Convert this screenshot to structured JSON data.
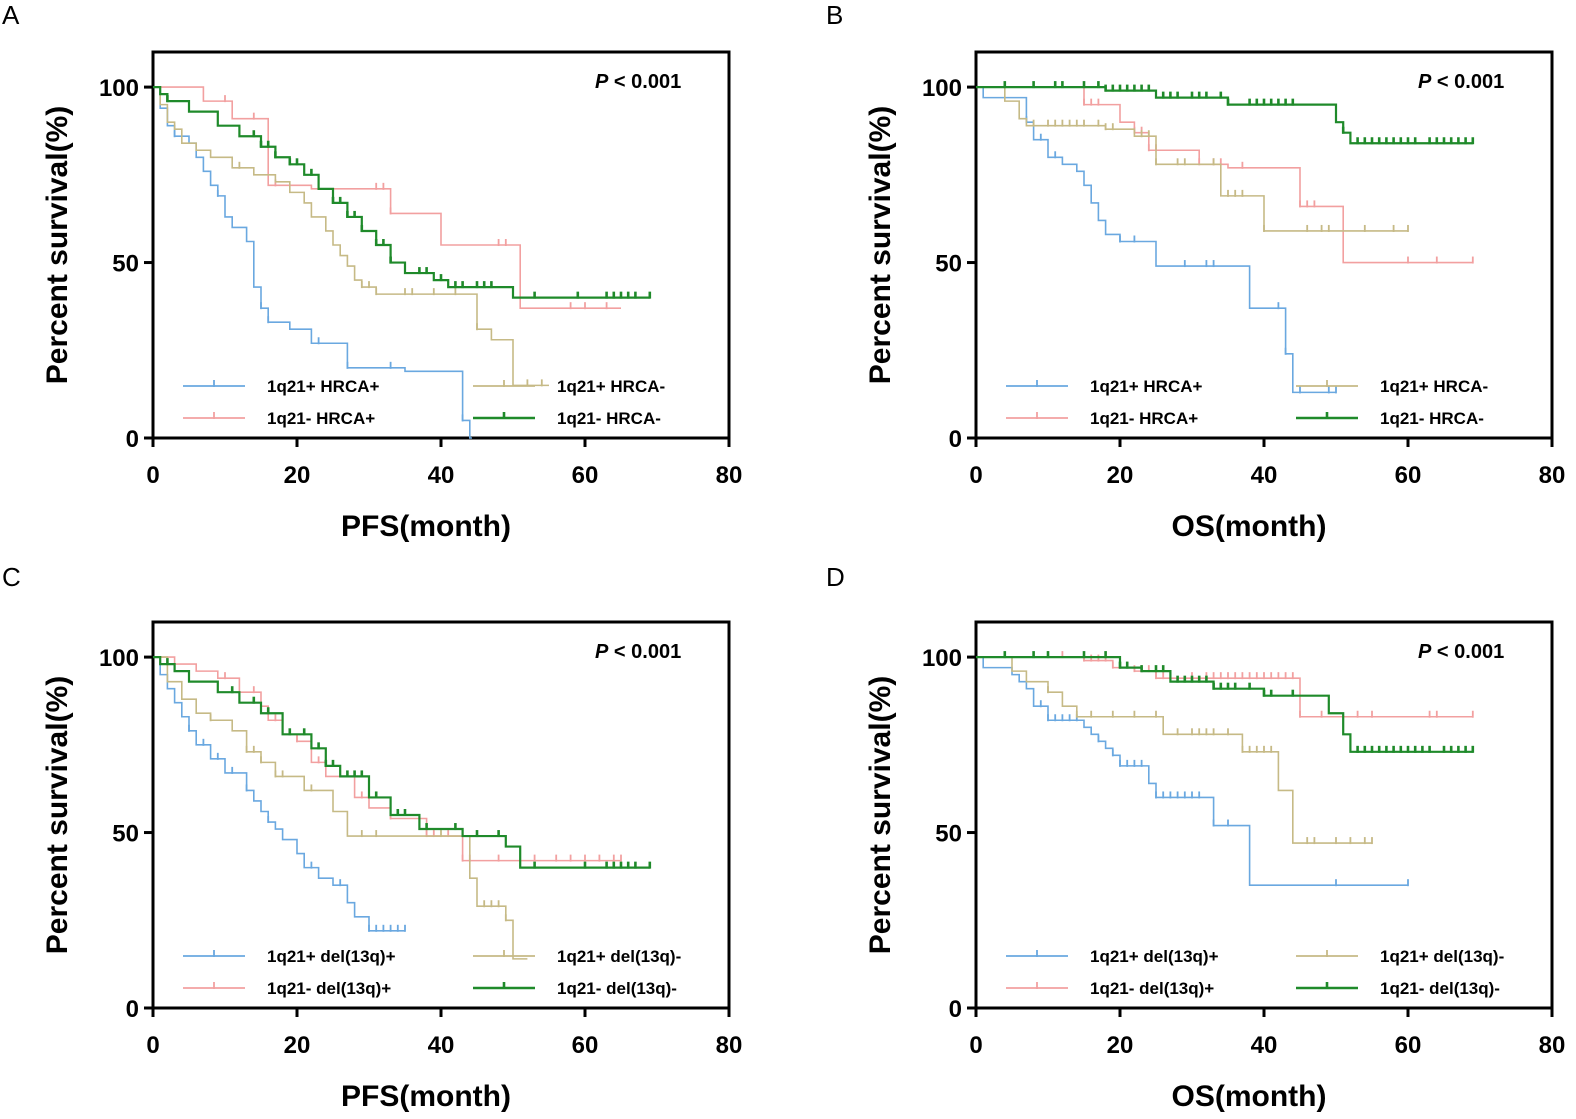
{
  "colors": {
    "blue": "#6aa8e0",
    "pink": "#f2a0a0",
    "tan": "#c6ba86",
    "green": "#1f8a2a"
  },
  "chart_data": [
    {
      "type": "line",
      "panel_label": "A",
      "title": "",
      "p_prefix": "P",
      "p_rest": " < 0.001",
      "xlabel": "PFS(month)",
      "ylabel": "Percent survival(%)",
      "xlim": [
        0,
        80
      ],
      "ylim": [
        0,
        110
      ],
      "xticks": [
        "0",
        "20",
        "40",
        "60",
        "80"
      ],
      "yticks": [
        "0",
        "50",
        "100"
      ],
      "series": [
        {
          "name": "1q21+ HRCA+",
          "color_key": "blue",
          "x": [
            0,
            1,
            2,
            3,
            5,
            6,
            7,
            8,
            9,
            10,
            11,
            13,
            14,
            15,
            16,
            19,
            22,
            27,
            35,
            43,
            44,
            44.3
          ],
          "y": [
            100,
            94,
            89,
            86,
            84,
            80,
            76,
            72,
            69,
            63,
            60,
            56,
            43,
            37,
            33,
            31,
            27,
            20,
            19,
            5,
            0,
            0
          ],
          "censor_x": [
            3,
            9,
            15,
            16,
            23,
            27,
            33,
            43
          ]
        },
        {
          "name": "1q21- HRCA+",
          "color_key": "pink",
          "x": [
            0,
            7,
            11,
            16,
            22,
            33,
            40,
            51,
            65
          ],
          "y": [
            100,
            96,
            91,
            72,
            71,
            64,
            55,
            37,
            37
          ],
          "censor_x": [
            10,
            14,
            17,
            31,
            32,
            33,
            48,
            49,
            58,
            60,
            63
          ]
        },
        {
          "name": "1q21+ HRCA-",
          "color_key": "tan",
          "x": [
            0,
            1,
            2,
            3,
            4,
            6,
            8,
            11,
            14,
            17,
            19,
            21,
            22,
            24,
            25,
            26,
            27,
            28,
            29,
            31,
            45,
            47,
            50,
            55
          ],
          "y": [
            100,
            95,
            90,
            88,
            84,
            82,
            80,
            77,
            75,
            73,
            70,
            67,
            63,
            59,
            55,
            52,
            49,
            45,
            43,
            41,
            31,
            28,
            15,
            15
          ],
          "censor_x": [
            12,
            29,
            30,
            31,
            35,
            36,
            39,
            42,
            45,
            52,
            54
          ]
        },
        {
          "name": "1q21- HRCA-",
          "color_key": "green",
          "x": [
            0,
            1,
            2,
            5,
            9,
            12,
            15,
            17,
            19,
            21,
            23,
            25,
            27,
            29,
            31,
            33,
            35,
            39,
            41,
            50,
            69
          ],
          "y": [
            100,
            98,
            96,
            93,
            89,
            86,
            83,
            80,
            78,
            75,
            71,
            67,
            63,
            59,
            55,
            50,
            47,
            45,
            43,
            40,
            40
          ],
          "censor_x": [
            2,
            14,
            15,
            16,
            17,
            19,
            20,
            22,
            25,
            26,
            27,
            28,
            29,
            31,
            32,
            33,
            37,
            38,
            40,
            42,
            43,
            45,
            46,
            47,
            53,
            59,
            63,
            64,
            65,
            66,
            67,
            69
          ]
        }
      ]
    },
    {
      "type": "line",
      "panel_label": "B",
      "title": "",
      "p_prefix": "P",
      "p_rest": " < 0.001",
      "xlabel": "OS(month)",
      "ylabel": "Percent survival(%)",
      "xlim": [
        0,
        80
      ],
      "ylim": [
        0,
        110
      ],
      "xticks": [
        "0",
        "20",
        "40",
        "60",
        "80"
      ],
      "yticks": [
        "0",
        "50",
        "100"
      ],
      "series": [
        {
          "name": "1q21+ HRCA+",
          "color_key": "blue",
          "x": [
            0,
            1,
            3,
            5,
            7,
            8,
            10,
            12,
            14,
            15,
            16,
            17,
            18,
            20,
            25,
            38,
            43,
            44,
            45,
            50
          ],
          "y": [
            100,
            97,
            97,
            97,
            90,
            85,
            80,
            78,
            76,
            72,
            67,
            62,
            58,
            56,
            49,
            37,
            24,
            13,
            13,
            13
          ],
          "censor_x": [
            7,
            9,
            11,
            20,
            22,
            29,
            32,
            33,
            42,
            43,
            45,
            49,
            50
          ]
        },
        {
          "name": "1q21- HRCA+",
          "color_key": "pink",
          "x": [
            0,
            15,
            20,
            22,
            24,
            31,
            35,
            45,
            51,
            69
          ],
          "y": [
            100,
            95,
            90,
            87,
            82,
            78,
            77,
            66,
            50,
            50
          ],
          "censor_x": [
            15,
            16,
            17,
            22,
            23,
            24,
            25,
            31,
            33,
            34,
            37,
            45,
            46,
            47,
            60,
            64,
            69
          ]
        },
        {
          "name": "1q21+ HRCA-",
          "color_key": "tan",
          "x": [
            0,
            4,
            6,
            7,
            18,
            22,
            25,
            30,
            34,
            40,
            60
          ],
          "y": [
            100,
            96,
            91,
            89,
            88,
            86,
            78,
            78,
            69,
            59,
            59
          ],
          "censor_x": [
            8,
            10,
            11,
            12,
            13,
            14,
            15,
            17,
            18,
            19,
            23,
            24,
            25,
            28,
            29,
            33,
            35,
            36,
            37,
            40,
            46,
            48,
            49,
            54,
            58,
            60
          ]
        },
        {
          "name": "1q21- HRCA-",
          "color_key": "green",
          "x": [
            0,
            18,
            25,
            35,
            50,
            51,
            52,
            69
          ],
          "y": [
            100,
            99,
            97,
            95,
            90,
            87,
            84,
            84
          ],
          "censor_x": [
            4,
            8,
            11,
            12,
            15,
            17,
            18,
            19,
            20,
            21,
            22,
            23,
            24,
            26,
            27,
            28,
            30,
            31,
            32,
            34,
            35,
            38,
            39,
            40,
            41,
            42,
            43,
            44,
            51,
            53,
            54,
            55,
            56,
            57,
            58,
            59,
            60,
            61,
            63,
            64,
            65,
            66,
            67,
            68,
            69
          ]
        }
      ]
    },
    {
      "type": "line",
      "panel_label": "C",
      "title": "",
      "p_prefix": "P",
      "p_rest": " < 0.001",
      "xlabel": "PFS(month)",
      "ylabel": "Percent survival(%)",
      "xlim": [
        0,
        80
      ],
      "ylim": [
        0,
        110
      ],
      "xticks": [
        "0",
        "20",
        "40",
        "60",
        "80"
      ],
      "yticks": [
        "0",
        "50",
        "100"
      ],
      "series": [
        {
          "name": "1q21+ del(13q)+",
          "color_key": "blue",
          "x": [
            0,
            1,
            2,
            3,
            4,
            5,
            6,
            8,
            10,
            13,
            14,
            15,
            16,
            17,
            18,
            20,
            21,
            23,
            25,
            27,
            28,
            30,
            35
          ],
          "y": [
            100,
            95,
            91,
            87,
            83,
            79,
            75,
            71,
            67,
            62,
            59,
            56,
            53,
            51,
            48,
            44,
            40,
            37,
            35,
            30,
            26,
            22,
            22
          ],
          "censor_x": [
            5,
            7,
            9,
            11,
            13,
            16,
            22,
            26,
            30,
            31,
            32,
            33,
            34,
            35
          ]
        },
        {
          "name": "1q21- del(13q)+",
          "color_key": "pink",
          "x": [
            0,
            3,
            6,
            9,
            12,
            15,
            16,
            18,
            20,
            22,
            24,
            28,
            30,
            33,
            38,
            43,
            65
          ],
          "y": [
            100,
            98,
            96,
            94,
            90,
            86,
            82,
            78,
            76,
            70,
            66,
            60,
            57,
            54,
            49,
            42,
            42
          ],
          "censor_x": [
            10,
            14,
            17,
            20,
            23,
            26,
            29,
            33,
            38,
            39,
            41,
            43,
            44,
            48,
            53,
            56,
            58,
            60,
            62,
            64,
            65
          ]
        },
        {
          "name": "1q21+ del(13q)-",
          "color_key": "tan",
          "x": [
            0,
            2,
            4,
            6,
            8,
            11,
            13,
            15,
            17,
            21,
            25,
            27,
            44,
            45,
            49,
            50,
            52
          ],
          "y": [
            100,
            93,
            88,
            84,
            82,
            79,
            73,
            70,
            66,
            62,
            56,
            49,
            37,
            29,
            25,
            14,
            14
          ],
          "censor_x": [
            8,
            13,
            14,
            15,
            17,
            18,
            22,
            29,
            31,
            40,
            46,
            47,
            48,
            49
          ]
        },
        {
          "name": "1q21- del(13q)-",
          "color_key": "green",
          "x": [
            0,
            1,
            3,
            5,
            9,
            12,
            15,
            18,
            22,
            24,
            26,
            30,
            33,
            37,
            43,
            49,
            51,
            69
          ],
          "y": [
            100,
            98,
            96,
            93,
            90,
            87,
            84,
            78,
            74,
            69,
            66,
            60,
            55,
            51,
            49,
            46,
            40,
            40
          ],
          "censor_x": [
            2,
            11,
            14,
            16,
            19,
            21,
            23,
            24,
            25,
            27,
            28,
            29,
            31,
            34,
            35,
            38,
            42,
            45,
            48,
            53,
            60,
            63,
            64,
            65,
            66,
            67,
            69
          ]
        }
      ]
    },
    {
      "type": "line",
      "panel_label": "D",
      "title": "",
      "p_prefix": "P",
      "p_rest": " < 0.001",
      "xlabel": "OS(month)",
      "ylabel": "Percent survival(%)",
      "xlim": [
        0,
        80
      ],
      "ylim": [
        0,
        110
      ],
      "xticks": [
        "0",
        "20",
        "40",
        "60",
        "80"
      ],
      "yticks": [
        "0",
        "50",
        "100"
      ],
      "series": [
        {
          "name": "1q21+ del(13q)+",
          "color_key": "blue",
          "x": [
            0,
            1,
            4,
            5,
            6,
            7,
            8,
            10,
            15,
            16,
            17,
            18,
            19,
            20,
            24,
            25,
            26,
            33,
            38,
            60
          ],
          "y": [
            100,
            97,
            97,
            95,
            93,
            91,
            86,
            82,
            80,
            78,
            76,
            74,
            72,
            69,
            64,
            60,
            60,
            52,
            35,
            35
          ],
          "censor_x": [
            9,
            10,
            11,
            12,
            13,
            14,
            17,
            19,
            20,
            21,
            22,
            23,
            25,
            26,
            27,
            28,
            29,
            30,
            31,
            33,
            35,
            50,
            60
          ]
        },
        {
          "name": "1q21- del(13q)+",
          "color_key": "pink",
          "x": [
            0,
            15,
            19,
            22,
            25,
            45,
            69
          ],
          "y": [
            100,
            99,
            97,
            96,
            94,
            83,
            83
          ],
          "censor_x": [
            10,
            12,
            15,
            16,
            17,
            18,
            19,
            20,
            21,
            22,
            23,
            24,
            25,
            26,
            27,
            30,
            32,
            33,
            34,
            35,
            36,
            37,
            38,
            39,
            40,
            41,
            42,
            43,
            44,
            45,
            48,
            53,
            55,
            63,
            64,
            69
          ]
        },
        {
          "name": "1q21+ del(13q)-",
          "color_key": "tan",
          "x": [
            0,
            5,
            7,
            10,
            12,
            14,
            18,
            26,
            37,
            42,
            44,
            55
          ],
          "y": [
            100,
            96,
            93,
            90,
            86,
            83,
            83,
            78,
            73,
            62,
            47,
            47
          ],
          "censor_x": [
            10,
            14,
            16,
            19,
            22,
            25,
            28,
            30,
            31,
            32,
            33,
            35,
            37,
            38,
            39,
            40,
            41,
            46,
            47,
            50,
            52,
            54,
            55
          ]
        },
        {
          "name": "1q21- del(13q)-",
          "color_key": "green",
          "x": [
            0,
            20,
            23,
            27,
            33,
            40,
            49,
            51,
            52,
            69
          ],
          "y": [
            100,
            97,
            96,
            93,
            91,
            89,
            84,
            78,
            73,
            73
          ],
          "censor_x": [
            4,
            8,
            10,
            15,
            18,
            20,
            21,
            23,
            25,
            26,
            28,
            29,
            30,
            31,
            32,
            33,
            34,
            35,
            36,
            38,
            40,
            41,
            44,
            53,
            54,
            55,
            56,
            57,
            58,
            59,
            60,
            61,
            62,
            63,
            65,
            66,
            67,
            68,
            69
          ]
        }
      ]
    }
  ]
}
